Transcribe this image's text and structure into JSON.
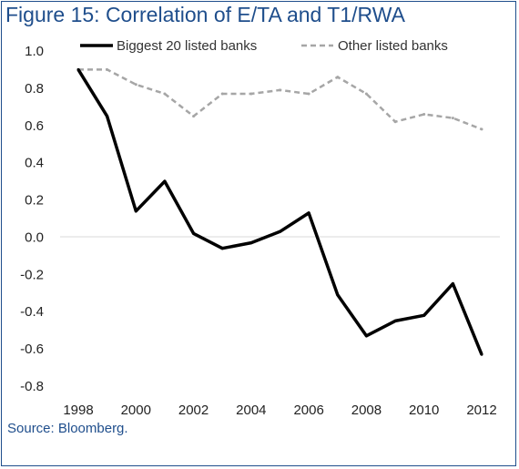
{
  "figure": {
    "title": "Figure 15: Correlation of E/TA and T1/RWA",
    "source": "Source: Bloomberg."
  },
  "chart_data": {
    "type": "line",
    "title": "Figure 15: Correlation of E/TA and T1/RWA",
    "x": [
      1998,
      1999,
      2000,
      2001,
      2002,
      2003,
      2004,
      2005,
      2006,
      2007,
      2008,
      2009,
      2010,
      2011,
      2012
    ],
    "x_tick_labels": [
      "1998",
      "2000",
      "2002",
      "2004",
      "2006",
      "2008",
      "2010",
      "2012"
    ],
    "x_ticks": [
      1998,
      2000,
      2002,
      2004,
      2006,
      2008,
      2010,
      2012
    ],
    "y_tick_labels": [
      "1.0",
      "0.8",
      "0.6",
      "0.4",
      "0.2",
      "0.0",
      "-0.2",
      "-0.4",
      "-0.6",
      "-0.8"
    ],
    "y_ticks": [
      1.0,
      0.8,
      0.6,
      0.4,
      0.2,
      0.0,
      -0.2,
      -0.4,
      -0.6,
      -0.8
    ],
    "xlim": [
      1998,
      2012
    ],
    "ylim": [
      -0.8,
      1.0
    ],
    "grid": false,
    "legend_position": "top",
    "series": [
      {
        "name": "Biggest 20 listed banks",
        "style": "solid",
        "color": "#000000",
        "values": [
          0.9,
          0.65,
          0.14,
          0.3,
          0.02,
          -0.06,
          -0.03,
          0.03,
          0.13,
          -0.31,
          -0.53,
          -0.45,
          -0.42,
          -0.25,
          -0.63
        ]
      },
      {
        "name": "Other listed banks",
        "style": "dashed",
        "color": "#a6a6a6",
        "values": [
          0.9,
          0.9,
          0.82,
          0.77,
          0.65,
          0.77,
          0.77,
          0.79,
          0.77,
          0.86,
          0.77,
          0.62,
          0.66,
          0.64,
          0.58
        ]
      }
    ]
  }
}
